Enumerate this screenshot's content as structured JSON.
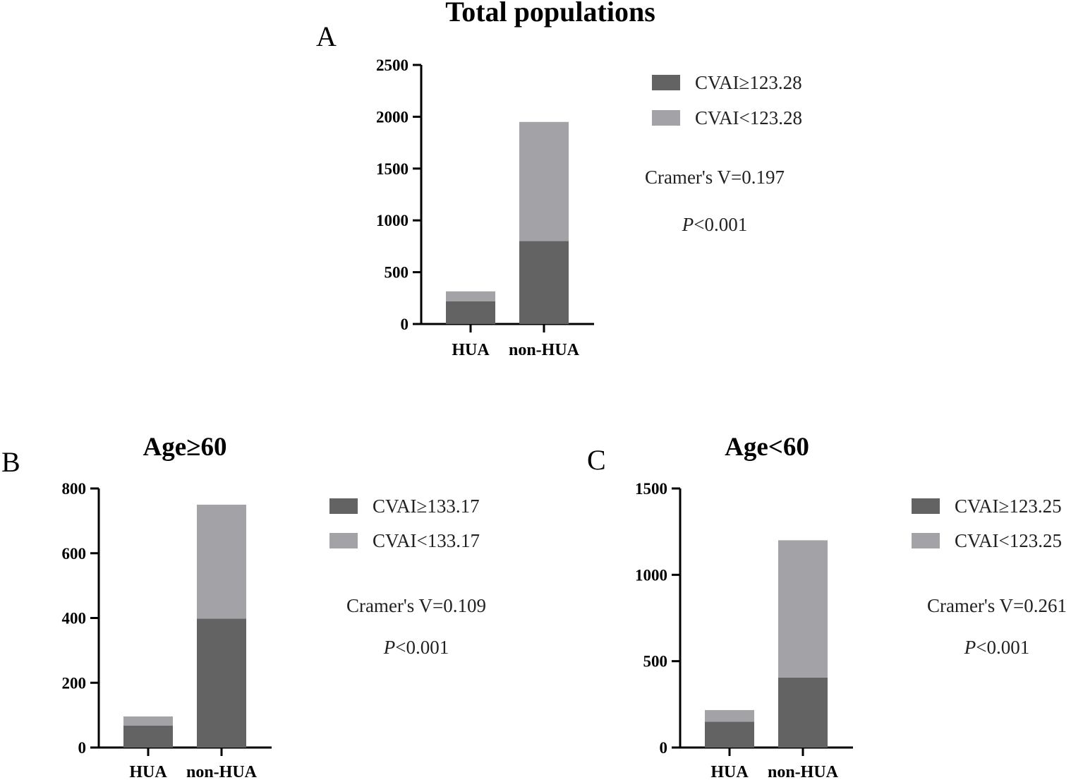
{
  "figure_title": "Total populations",
  "colors": {
    "dark": "#636363",
    "light": "#a3a3a7"
  },
  "chart_data": [
    {
      "panel": "A",
      "type": "bar",
      "stacked": true,
      "title": "",
      "categories": [
        "HUA",
        "non-HUA"
      ],
      "series": [
        {
          "name": "CVAI≥123.28",
          "values": [
            220,
            800
          ]
        },
        {
          "name": "CVAI<123.28",
          "values": [
            95,
            1150
          ]
        }
      ],
      "ylim": [
        0,
        2500
      ],
      "yticks": [
        "0",
        "500",
        "1000",
        "1500",
        "2000",
        "2500"
      ],
      "ytick_values": [
        0,
        500,
        1000,
        1500,
        2000,
        2500
      ],
      "legend": [
        "CVAI≥123.28",
        "CVAI<123.28"
      ],
      "cramers_v": "Cramer's V=0.197",
      "p_label": "P",
      "p_value": "<0.001"
    },
    {
      "panel": "B",
      "type": "bar",
      "stacked": true,
      "title": "Age≥60",
      "categories": [
        "HUA",
        "non-HUA"
      ],
      "series": [
        {
          "name": "CVAI≥133.17",
          "values": [
            68,
            398
          ]
        },
        {
          "name": "CVAI<133.17",
          "values": [
            28,
            352
          ]
        }
      ],
      "ylim": [
        0,
        800
      ],
      "yticks": [
        "0",
        "200",
        "400",
        "600",
        "800"
      ],
      "ytick_values": [
        0,
        200,
        400,
        600,
        800
      ],
      "legend": [
        "CVAI≥133.17",
        "CVAI<133.17"
      ],
      "cramers_v": "Cramer's V=0.109",
      "p_label": "P",
      "p_value": "<0.001"
    },
    {
      "panel": "C",
      "type": "bar",
      "stacked": true,
      "title": "Age<60",
      "categories": [
        "HUA",
        "non-HUA"
      ],
      "series": [
        {
          "name": "CVAI≥123.25",
          "values": [
            150,
            405
          ]
        },
        {
          "name": "CVAI<123.25",
          "values": [
            67,
            795
          ]
        }
      ],
      "ylim": [
        0,
        1500
      ],
      "yticks": [
        "0",
        "500",
        "1000",
        "1500"
      ],
      "ytick_values": [
        0,
        500,
        1000,
        1500
      ],
      "legend": [
        "CVAI≥123.25",
        "CVAI<123.25"
      ],
      "cramers_v": "Cramer's V=0.261",
      "p_label": "P",
      "p_value": "<0.001"
    }
  ]
}
